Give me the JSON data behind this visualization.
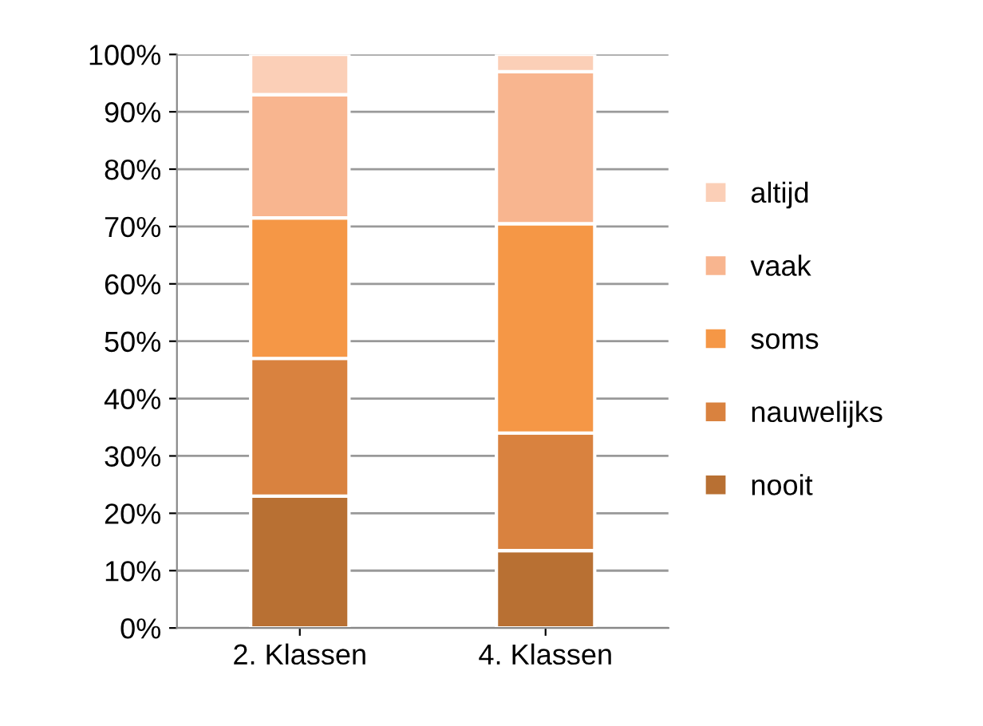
{
  "chart_data": {
    "type": "bar",
    "stacked": true,
    "categories": [
      "2. Klassen",
      "4. Klassen"
    ],
    "series": [
      {
        "name": "nooit",
        "color": "#b87033",
        "values": [
          23,
          13.5
        ]
      },
      {
        "name": "nauwelijks",
        "color": "#d9823f",
        "values": [
          24,
          20.5
        ]
      },
      {
        "name": "soms",
        "color": "#f59746",
        "values": [
          24.5,
          36.5
        ]
      },
      {
        "name": "vaak",
        "color": "#f8b58f",
        "values": [
          21.5,
          26.5
        ]
      },
      {
        "name": "altijd",
        "color": "#fbcfb7",
        "values": [
          7,
          3
        ]
      }
    ],
    "ylim": [
      0,
      100
    ],
    "yticks": [
      {
        "value": 0,
        "label": "0%"
      },
      {
        "value": 10,
        "label": "10%"
      },
      {
        "value": 20,
        "label": "20%"
      },
      {
        "value": 30,
        "label": "30%"
      },
      {
        "value": 40,
        "label": "40%"
      },
      {
        "value": 50,
        "label": "50%"
      },
      {
        "value": 60,
        "label": "60%"
      },
      {
        "value": 70,
        "label": "70%"
      },
      {
        "value": 80,
        "label": "80%"
      },
      {
        "value": 90,
        "label": "90%"
      },
      {
        "value": 100,
        "label": "100%"
      }
    ],
    "grid": "y",
    "legend": "right"
  }
}
